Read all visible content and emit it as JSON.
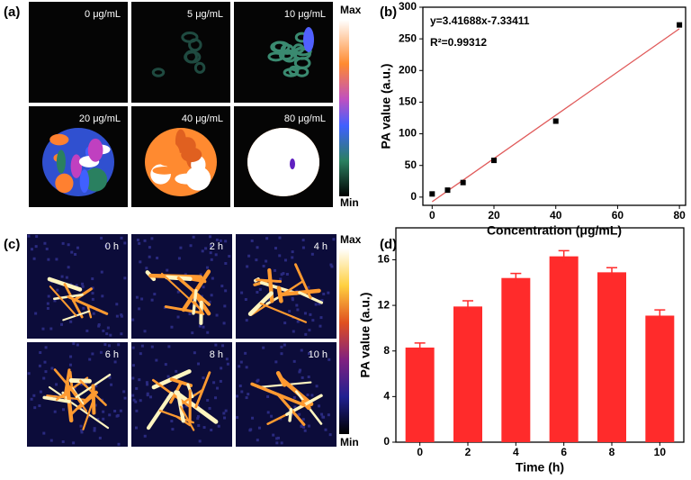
{
  "chart_data": [
    {
      "type": "scatter",
      "label": "(b)",
      "x": [
        0,
        5,
        10,
        20,
        40,
        80
      ],
      "values": [
        5,
        11,
        23,
        58,
        120,
        272
      ],
      "color": "#000000",
      "fit": {
        "slope": 3.41688,
        "intercept": -7.33411,
        "color": "#e05a5a",
        "equation": "y=3.41688x-7.33411",
        "r_squared": "R²=0.99312"
      },
      "xlabel": "Concentration (μg/mL)",
      "ylabel": "PA value (a.u.)",
      "xlim": [
        -3,
        82
      ],
      "ylim": [
        -13,
        300
      ],
      "xticks": [
        0,
        20,
        40,
        60,
        80
      ],
      "yticks": [
        0,
        50,
        100,
        150,
        200,
        250,
        300
      ]
    },
    {
      "type": "bar",
      "label": "(d)",
      "categories": [
        "0",
        "2",
        "4",
        "6",
        "8",
        "10"
      ],
      "values": [
        8.3,
        11.9,
        14.4,
        16.3,
        14.9,
        11.1
      ],
      "errors": [
        0.4,
        0.5,
        0.4,
        0.5,
        0.4,
        0.5
      ],
      "color": "#ff2b2b",
      "xlabel": "Time (h)",
      "ylabel": "PA value (a.u.)",
      "ylim": [
        0,
        18.8
      ],
      "yticks": [
        0,
        4,
        8,
        12,
        16
      ]
    }
  ],
  "panel_a": {
    "label": "(a)",
    "images": [
      "0 μg/mL",
      "5 μg/mL",
      "10 μg/mL",
      "20 μg/mL",
      "40 μg/mL",
      "80 μg/mL"
    ],
    "colorbar": {
      "max": "Max",
      "min": "Min"
    }
  },
  "panel_c": {
    "label": "(c)",
    "images": [
      "0 h",
      "2 h",
      "4 h",
      "6 h",
      "8 h",
      "10 h"
    ],
    "colorbar": {
      "max": "Max",
      "min": "Min"
    }
  }
}
